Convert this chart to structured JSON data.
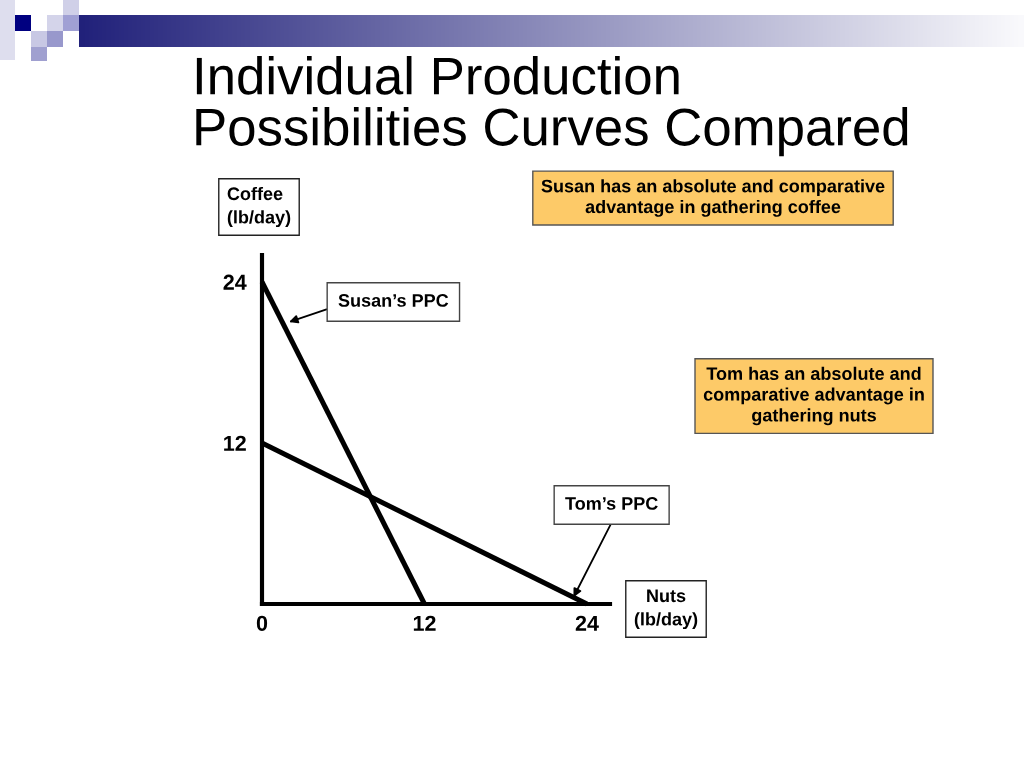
{
  "chart_data": {
    "type": "line",
    "title": "Individual Production\nPossibilities Curves Compared",
    "xlabel": "Nuts\n(lb/day)",
    "ylabel": "Coffee\n(lb/day)",
    "series": [
      {
        "color": "#000000",
        "x": [
          0,
          12
        ],
        "values": [
          24,
          0
        ]
      },
      {
        "color": "#000000",
        "x": [
          0,
          24
        ],
        "values": [
          12,
          0
        ]
      }
    ],
    "xlim": [
      0,
      25.7
    ],
    "ylim": [
      0,
      26
    ],
    "xticks": [
      0,
      12,
      24
    ],
    "yticks": [
      12,
      24
    ],
    "grid": false,
    "marker": "none",
    "line_style": "solid",
    "annotations": [
      "Susan has an absolute and comparative\nadvantage in gathering coffee",
      "Tom has an absolute and\ncomparative advantage in\ngathering nuts",
      {
        "text": "Susan’s PPC",
        "x": 2,
        "y": 21
      },
      {
        "text": "Tom’s PPC",
        "x": 23,
        "y": 0.5
      }
    ]
  }
}
